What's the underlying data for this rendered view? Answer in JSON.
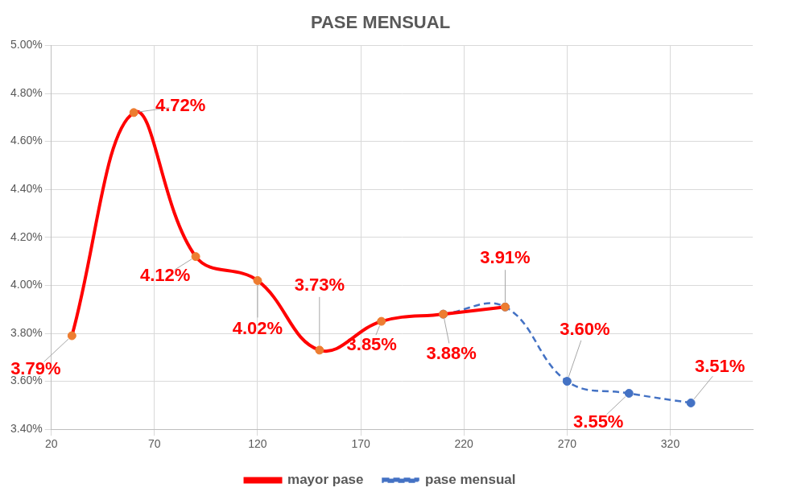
{
  "chart_data": {
    "type": "line",
    "title": "PASE MENSUAL",
    "x": [
      30,
      60,
      90,
      120,
      150,
      180,
      210,
      240,
      270,
      300,
      330
    ],
    "xlim": [
      20,
      360
    ],
    "xticks": [
      20,
      70,
      120,
      170,
      220,
      270,
      320
    ],
    "ylim": [
      3.4,
      5.0
    ],
    "yticks": [
      {
        "value": 3.4,
        "label": "3.40%"
      },
      {
        "value": 3.6,
        "label": "3.60%"
      },
      {
        "value": 3.8,
        "label": "3.80%"
      },
      {
        "value": 4.0,
        "label": "4.00%"
      },
      {
        "value": 4.2,
        "label": "4.20%"
      },
      {
        "value": 4.4,
        "label": "4.40%"
      },
      {
        "value": 4.6,
        "label": "4.60%"
      },
      {
        "value": 4.8,
        "label": "4.80%"
      },
      {
        "value": 5.0,
        "label": "5.00%"
      }
    ],
    "grid": true,
    "legend": "bottom",
    "data_labels": true,
    "series": [
      {
        "name": "pase mensual",
        "color": "#4472c4",
        "line_style": "dashed",
        "marker": "circle",
        "values": [
          null,
          null,
          null,
          null,
          null,
          null,
          3.88,
          3.91,
          3.6,
          3.55,
          3.51
        ],
        "value_labels": [
          null,
          null,
          null,
          null,
          null,
          null,
          null,
          null,
          "3.60%",
          "3.55%",
          "3.51%"
        ]
      },
      {
        "name": "mayor pase",
        "color": "#ff0000",
        "line_style": "solid",
        "marker": "circle",
        "values": [
          3.79,
          4.72,
          4.12,
          4.02,
          3.73,
          3.85,
          3.88,
          3.91,
          null,
          null,
          null
        ],
        "value_labels": [
          "3.79%",
          "4.72%",
          "4.12%",
          "4.02%",
          "3.73%",
          "3.85%",
          "3.88%",
          "3.91%",
          null,
          null,
          null
        ]
      }
    ]
  }
}
